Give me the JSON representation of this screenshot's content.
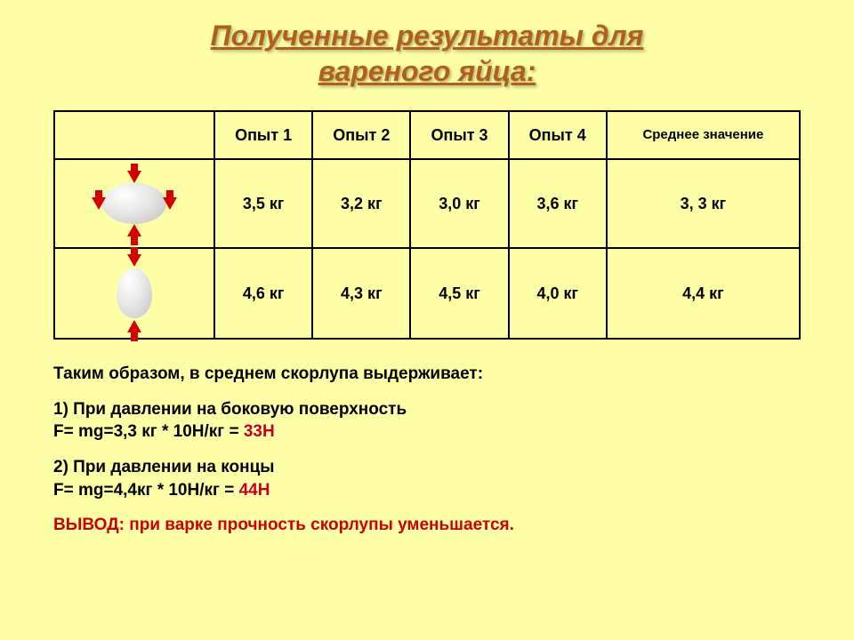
{
  "title_line1": "Полученные результаты для",
  "title_line2": "вареного яйца:",
  "table": {
    "headers": [
      "Опыт 1",
      "Опыт 2",
      "Опыт 3",
      "Опыт 4"
    ],
    "avg_header": "Среднее значение",
    "rows": [
      {
        "orientation": "horizontal",
        "cells": [
          "3,5 кг",
          "3,2 кг",
          "3,0 кг",
          "3,6 кг",
          "3, 3 кг"
        ]
      },
      {
        "orientation": "vertical",
        "cells": [
          "4,6 кг",
          "4,3 кг",
          "4,5 кг",
          "4,0 кг",
          "4,4 кг"
        ]
      }
    ]
  },
  "body": {
    "intro": "Таким образом, в среднем скорлупа выдерживает:",
    "case1_label": "1) При давлении на боковую поверхность",
    "case1_formula_prefix": "F= mg=",
    "case1_formula_calc": "3,3 кг * 10Н/кг = ",
    "case1_result": "33Н",
    "case2_label": "2) При давлении на концы",
    "case2_formula_prefix": "F= mg=",
    "case2_formula_calc": "4,4кг * 10Н/кг = ",
    "case2_result": "44Н",
    "conclusion_label": "ВЫВОД: ",
    "conclusion_text": "при варке прочность скорлупы уменьшается."
  },
  "colors": {
    "background": "#ffffa8",
    "title": "#b06018",
    "accent_red": "#cc0000",
    "arrow_red": "#d40000",
    "border": "#000000"
  }
}
